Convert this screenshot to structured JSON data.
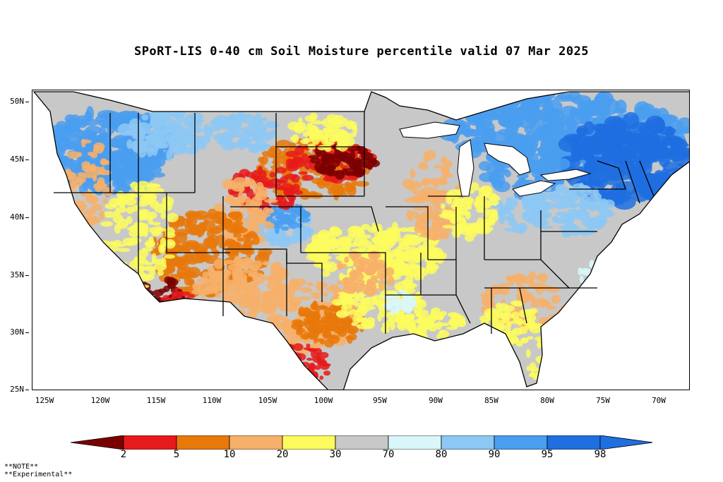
{
  "title": "SPoRT-LIS 0-40 cm Soil Moisture percentile valid 07 Mar 2025",
  "lat_labels": [
    "50N",
    "45N",
    "40N",
    "35N",
    "30N",
    "25N"
  ],
  "lon_labels": [
    "125W",
    "120W",
    "115W",
    "110W",
    "105W",
    "100W",
    "95W",
    "90W",
    "85W",
    "80W",
    "75W",
    "70W"
  ],
  "colorbar": {
    "labels": [
      "2",
      "5",
      "10",
      "20",
      "30",
      "70",
      "80",
      "90",
      "95",
      "98"
    ],
    "colors": [
      "#7a0000",
      "#e61a1a",
      "#e8780a",
      "#f7b06a",
      "#fbfb5e",
      "#c8c8c8",
      "#d9f7fb",
      "#8dc8f5",
      "#4a9ef0",
      "#1f6fe0",
      "#1f6fe0"
    ]
  },
  "notes": [
    "**NOTE**",
    "**Experimental**"
  ],
  "map": {
    "background_color": "#c8c8c8",
    "ocean_color": "#ffffff",
    "boundary_color": "#000000"
  }
}
